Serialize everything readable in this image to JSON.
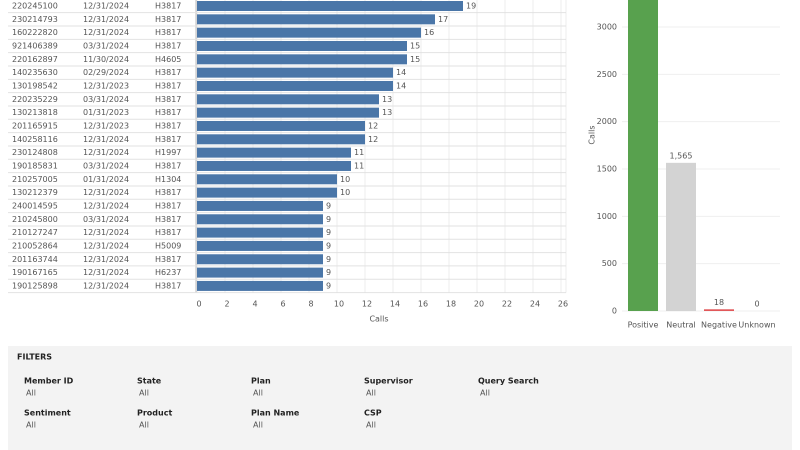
{
  "chart_data": [
    {
      "type": "hbar",
      "categories": [
        "220245100",
        "230214793",
        "160222820",
        "921406389",
        "220162897",
        "140235630",
        "130198542",
        "220235229",
        "130213818",
        "201165915",
        "140258116",
        "230124808",
        "190185831",
        "210257005",
        "130212379",
        "240014595",
        "210245800",
        "210127247",
        "210052864",
        "201163744",
        "190167165",
        "190125898"
      ],
      "dates": [
        "12/31/2024",
        "12/31/2024",
        "12/31/2024",
        "03/31/2024",
        "11/30/2024",
        "02/29/2024",
        "12/31/2023",
        "03/31/2024",
        "01/31/2023",
        "12/31/2023",
        "12/31/2024",
        "12/31/2024",
        "03/31/2024",
        "01/31/2024",
        "12/31/2024",
        "12/31/2024",
        "03/31/2024",
        "12/31/2024",
        "12/31/2024",
        "12/31/2024",
        "12/31/2024",
        "12/31/2024"
      ],
      "plans": [
        "H3817",
        "H3817",
        "H3817",
        "H3817",
        "H4605",
        "H3817",
        "H3817",
        "H3817",
        "H3817",
        "H3817",
        "H3817",
        "H1997",
        "H3817",
        "H1304",
        "H3817",
        "H3817",
        "H3817",
        "H3817",
        "H5009",
        "H3817",
        "H6237",
        "H3817"
      ],
      "values": [
        19,
        17,
        16,
        15,
        15,
        14,
        14,
        13,
        13,
        12,
        12,
        11,
        11,
        10,
        10,
        9,
        9,
        9,
        9,
        9,
        9,
        9
      ],
      "color": "#4a76a8",
      "xlabel": "Calls",
      "xlim": [
        0,
        26
      ],
      "xticks": [
        0,
        2,
        4,
        6,
        8,
        10,
        12,
        14,
        16,
        18,
        20,
        22,
        24,
        26
      ],
      "grid": true
    },
    {
      "type": "bar",
      "categories": [
        "Positive",
        "Neutral",
        "Negative",
        "Unknown"
      ],
      "values": [
        3300,
        1565,
        18,
        0
      ],
      "value_labels": [
        null,
        "1,565",
        "18",
        "0"
      ],
      "colors": [
        "#58a14e",
        "#d3d3d3",
        "#e15759",
        "#cccccc"
      ],
      "ylabel": "Calls",
      "ylim": [
        0,
        3280
      ],
      "yticks": [
        0,
        500,
        1000,
        1500,
        2000,
        2500,
        3000
      ],
      "grid": true
    }
  ],
  "filters": {
    "title": "FILTERS",
    "items": [
      {
        "label": "Member ID",
        "value": "All"
      },
      {
        "label": "State",
        "value": "All"
      },
      {
        "label": "Plan",
        "value": "All"
      },
      {
        "label": "Supervisor",
        "value": "All"
      },
      {
        "label": "Query Search",
        "value": "All"
      },
      {
        "label": "Sentiment",
        "value": "All"
      },
      {
        "label": "Product",
        "value": "All"
      },
      {
        "label": "Plan Name",
        "value": "All"
      },
      {
        "label": "CSP",
        "value": "All"
      }
    ]
  }
}
